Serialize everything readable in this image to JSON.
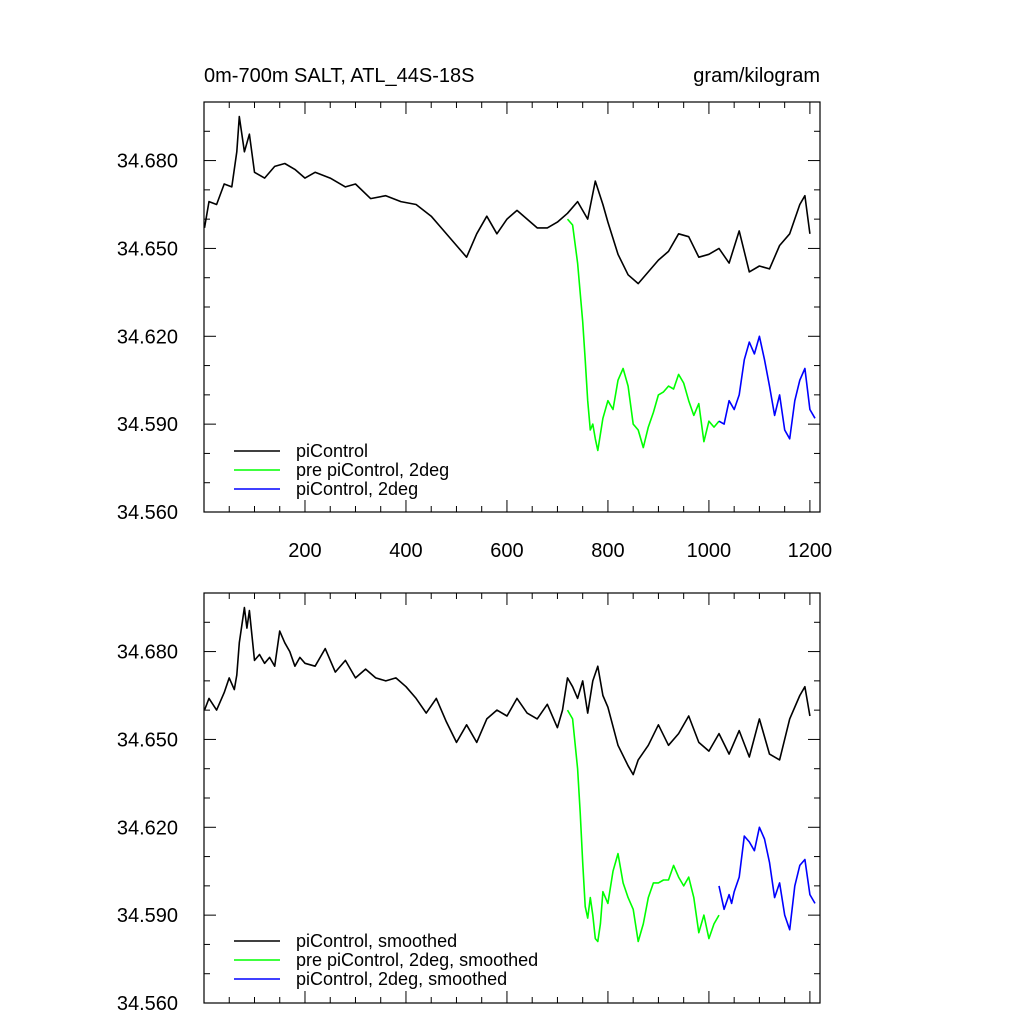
{
  "chart_data": [
    {
      "type": "line",
      "title": "0m-700m SALT, ATL_44S-18S",
      "units": "gram/kilogram",
      "xlim": [
        0,
        1220
      ],
      "ylim": [
        34.56,
        34.7
      ],
      "xticks": [
        200,
        400,
        600,
        800,
        1000,
        1200
      ],
      "xtick_labels": [
        "200",
        "400",
        "600",
        "800",
        "1000",
        "1200"
      ],
      "yticks": [
        34.56,
        34.59,
        34.62,
        34.65,
        34.68
      ],
      "ytick_labels": [
        "34.560",
        "34.590",
        "34.620",
        "34.650",
        "34.680"
      ],
      "legend_position": "bottom-left",
      "grid": false,
      "series": [
        {
          "name": "piControl",
          "color": "#000000",
          "x": [
            1,
            10,
            25,
            40,
            55,
            65,
            70,
            80,
            90,
            100,
            120,
            140,
            160,
            180,
            200,
            220,
            250,
            280,
            300,
            330,
            360,
            390,
            420,
            450,
            470,
            500,
            520,
            540,
            560,
            580,
            600,
            620,
            640,
            660,
            680,
            700,
            720,
            740,
            760,
            775,
            790,
            800,
            820,
            840,
            860,
            880,
            900,
            920,
            940,
            960,
            980,
            1000,
            1020,
            1040,
            1060,
            1080,
            1100,
            1120,
            1140,
            1160,
            1180,
            1190,
            1200
          ],
          "y": [
            34.657,
            34.666,
            34.665,
            34.672,
            34.671,
            34.683,
            34.695,
            34.683,
            34.689,
            34.676,
            34.674,
            34.678,
            34.679,
            34.677,
            34.674,
            34.676,
            34.674,
            34.671,
            34.672,
            34.667,
            34.668,
            34.666,
            34.665,
            34.661,
            34.657,
            34.651,
            34.647,
            34.655,
            34.661,
            34.655,
            34.66,
            34.663,
            34.66,
            34.657,
            34.657,
            34.659,
            34.662,
            34.666,
            34.66,
            34.673,
            34.665,
            34.659,
            34.648,
            34.641,
            34.638,
            34.642,
            34.646,
            34.649,
            34.655,
            34.654,
            34.647,
            34.648,
            34.65,
            34.645,
            34.656,
            34.642,
            34.644,
            34.643,
            34.651,
            34.655,
            34.665,
            34.668,
            34.655
          ]
        },
        {
          "name": "pre piControl, 2deg",
          "color": "#00ff00",
          "x": [
            720,
            730,
            740,
            750,
            755,
            760,
            765,
            770,
            775,
            780,
            790,
            800,
            810,
            820,
            830,
            840,
            850,
            860,
            870,
            880,
            890,
            900,
            910,
            920,
            930,
            940,
            950,
            960,
            970,
            980,
            990,
            1000,
            1010,
            1020
          ],
          "y": [
            34.66,
            34.658,
            34.645,
            34.625,
            34.612,
            34.598,
            34.588,
            34.59,
            34.585,
            34.581,
            34.592,
            34.598,
            34.595,
            34.605,
            34.609,
            34.603,
            34.59,
            34.588,
            34.582,
            34.589,
            34.594,
            34.6,
            34.601,
            34.603,
            34.602,
            34.607,
            34.604,
            34.598,
            34.593,
            34.597,
            34.584,
            34.591,
            34.589,
            34.591
          ]
        },
        {
          "name": "piControl, 2deg",
          "color": "#0000ff",
          "x": [
            1020,
            1030,
            1040,
            1050,
            1060,
            1070,
            1080,
            1090,
            1100,
            1110,
            1120,
            1130,
            1140,
            1150,
            1160,
            1170,
            1180,
            1190,
            1200,
            1210
          ],
          "y": [
            34.591,
            34.59,
            34.598,
            34.595,
            34.6,
            34.612,
            34.618,
            34.614,
            34.62,
            34.612,
            34.603,
            34.593,
            34.6,
            34.588,
            34.585,
            34.598,
            34.605,
            34.609,
            34.595,
            34.592
          ]
        }
      ]
    },
    {
      "type": "line",
      "title": "",
      "units": "",
      "xlim": [
        0,
        1220
      ],
      "ylim": [
        34.56,
        34.7
      ],
      "xticks": [
        200,
        400,
        600,
        800,
        1000,
        1200
      ],
      "xtick_labels": [],
      "yticks": [
        34.56,
        34.59,
        34.62,
        34.65,
        34.68
      ],
      "ytick_labels": [
        "34.560",
        "34.590",
        "34.620",
        "34.650",
        "34.680"
      ],
      "legend_position": "bottom-left",
      "grid": false,
      "series": [
        {
          "name": "piControl, smoothed",
          "color": "#000000",
          "x": [
            1,
            10,
            25,
            40,
            50,
            60,
            65,
            70,
            80,
            85,
            90,
            100,
            110,
            120,
            130,
            140,
            150,
            160,
            170,
            180,
            190,
            200,
            220,
            240,
            260,
            280,
            300,
            320,
            340,
            360,
            380,
            400,
            420,
            440,
            460,
            480,
            500,
            520,
            540,
            560,
            580,
            600,
            620,
            640,
            660,
            680,
            700,
            710,
            720,
            730,
            740,
            750,
            760,
            770,
            780,
            790,
            800,
            820,
            840,
            850,
            860,
            880,
            900,
            920,
            940,
            960,
            980,
            1000,
            1020,
            1040,
            1060,
            1080,
            1100,
            1120,
            1140,
            1160,
            1180,
            1190,
            1200
          ],
          "y": [
            34.66,
            34.664,
            34.66,
            34.666,
            34.671,
            34.667,
            34.672,
            34.683,
            34.695,
            34.688,
            34.694,
            34.677,
            34.679,
            34.676,
            34.678,
            34.675,
            34.687,
            34.683,
            34.68,
            34.675,
            34.678,
            34.676,
            34.675,
            34.681,
            34.673,
            34.677,
            34.671,
            34.674,
            34.671,
            34.67,
            34.671,
            34.668,
            34.664,
            34.659,
            34.664,
            34.656,
            34.649,
            34.655,
            34.649,
            34.657,
            34.66,
            34.658,
            34.664,
            34.659,
            34.657,
            34.662,
            34.654,
            34.66,
            34.671,
            34.668,
            34.664,
            34.67,
            34.659,
            34.67,
            34.675,
            34.665,
            34.661,
            34.648,
            34.641,
            34.638,
            34.643,
            34.648,
            34.655,
            34.648,
            34.652,
            34.658,
            34.649,
            34.646,
            34.652,
            34.645,
            34.653,
            34.644,
            34.657,
            34.645,
            34.643,
            34.657,
            34.665,
            34.668,
            34.658
          ]
        },
        {
          "name": "pre piControl, 2deg, smoothed",
          "color": "#00ff00",
          "x": [
            720,
            730,
            740,
            745,
            750,
            755,
            760,
            765,
            770,
            775,
            780,
            785,
            790,
            800,
            810,
            820,
            830,
            840,
            850,
            860,
            870,
            880,
            890,
            900,
            910,
            920,
            930,
            940,
            950,
            960,
            970,
            980,
            990,
            1000,
            1010,
            1020
          ],
          "y": [
            34.66,
            34.657,
            34.64,
            34.625,
            34.608,
            34.593,
            34.589,
            34.596,
            34.59,
            34.582,
            34.581,
            34.587,
            34.598,
            34.594,
            34.605,
            34.611,
            34.601,
            34.596,
            34.592,
            34.581,
            34.587,
            34.596,
            34.601,
            34.601,
            34.602,
            34.602,
            34.607,
            34.603,
            34.6,
            34.603,
            34.596,
            34.584,
            34.59,
            34.582,
            34.587,
            34.59
          ]
        },
        {
          "name": "piControl, 2deg, smoothed",
          "color": "#0000ff",
          "x": [
            1020,
            1030,
            1040,
            1045,
            1050,
            1060,
            1070,
            1080,
            1090,
            1100,
            1110,
            1120,
            1130,
            1140,
            1150,
            1160,
            1170,
            1180,
            1190,
            1200,
            1210
          ],
          "y": [
            34.6,
            34.592,
            34.597,
            34.594,
            34.598,
            34.603,
            34.617,
            34.615,
            34.612,
            34.62,
            34.616,
            34.608,
            34.596,
            34.601,
            34.59,
            34.585,
            34.6,
            34.607,
            34.609,
            34.597,
            34.594
          ]
        }
      ]
    }
  ]
}
